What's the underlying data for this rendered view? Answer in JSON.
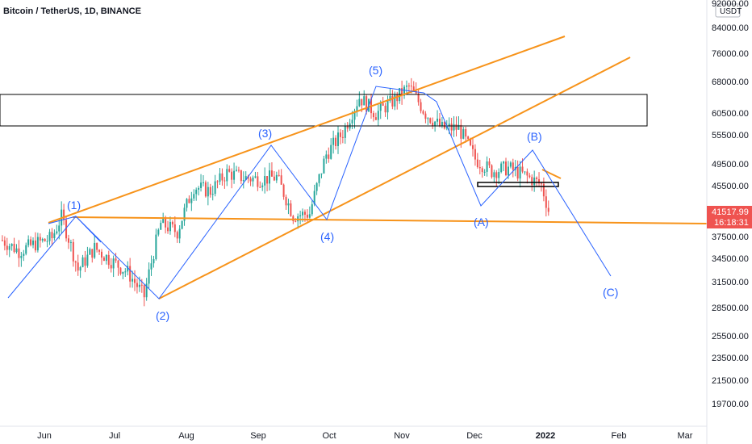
{
  "header": {
    "title": "Bitcoin / TetherUS, 1D, BINANCE"
  },
  "price_axis": {
    "currency": "USDT",
    "ticks": [
      "92000.00",
      "84000.00",
      "76000.00",
      "68000.00",
      "60500.00",
      "55500.00",
      "49500.00",
      "45500.00",
      "37500.00",
      "34500.00",
      "31500.00",
      "28500.00",
      "25500.00",
      "23500.00",
      "21500.00",
      "19700.00"
    ],
    "last_price": "41517.99",
    "countdown": "16:18:31"
  },
  "time_axis": {
    "ticks": [
      "Jun",
      "Jul",
      "Aug",
      "Sep",
      "Oct",
      "Nov",
      "Dec",
      "2022",
      "Feb",
      "Mar"
    ]
  },
  "wave_labels": [
    "(1)",
    "(2)",
    "(3)",
    "(4)",
    "(5)",
    "(A)",
    "(B)",
    "(C)"
  ],
  "colors": {
    "up": "#26a69a",
    "down": "#ef5350",
    "trend": "#f7931a",
    "wave": "#2962ff",
    "last_price": "#ef5350"
  },
  "chart_data": {
    "type": "candlestick",
    "title": "Bitcoin / TetherUS, 1D, BINANCE",
    "x_range": [
      "2021-05-20",
      "2022-03-10"
    ],
    "y_range": [
      18500,
      92000
    ],
    "elliott_waves": [
      {
        "label": "(1)",
        "date": "2021-06-15",
        "price": 41300
      },
      {
        "label": "(2)",
        "date": "2021-07-20",
        "price": 29300
      },
      {
        "label": "(3)",
        "date": "2021-09-07",
        "price": 52900
      },
      {
        "label": "(4)",
        "date": "2021-09-29",
        "price": 40800
      },
      {
        "label": "(5)",
        "date": "2021-10-20",
        "price": 67000
      },
      {
        "label": "(A)",
        "date": "2021-12-04",
        "price": 42000
      },
      {
        "label": "(B)",
        "date": "2021-12-28",
        "price": 52100
      },
      {
        "label": "(C)",
        "date": "2022-02-05",
        "price": 32000
      }
    ],
    "last_price": 41517.99,
    "resistance_zone": [
      57500,
      65000
    ],
    "candles_approx": [
      {
        "date": "2021-05-21",
        "close": 37000
      },
      {
        "date": "2021-05-28",
        "close": 35500
      },
      {
        "date": "2021-06-04",
        "close": 36500
      },
      {
        "date": "2021-06-11",
        "close": 37300
      },
      {
        "date": "2021-06-15",
        "close": 40500
      },
      {
        "date": "2021-06-22",
        "close": 33000
      },
      {
        "date": "2021-06-29",
        "close": 35900
      },
      {
        "date": "2021-07-06",
        "close": 34200
      },
      {
        "date": "2021-07-13",
        "close": 32700
      },
      {
        "date": "2021-07-20",
        "close": 29800
      },
      {
        "date": "2021-07-27",
        "close": 39500
      },
      {
        "date": "2021-08-03",
        "close": 38200
      },
      {
        "date": "2021-08-10",
        "close": 45500
      },
      {
        "date": "2021-08-17",
        "close": 44700
      },
      {
        "date": "2021-08-24",
        "close": 48000
      },
      {
        "date": "2021-08-31",
        "close": 47100
      },
      {
        "date": "2021-09-07",
        "close": 46800
      },
      {
        "date": "2021-09-14",
        "close": 47200
      },
      {
        "date": "2021-09-21",
        "close": 40700
      },
      {
        "date": "2021-09-28",
        "close": 41000
      },
      {
        "date": "2021-10-05",
        "close": 51500
      },
      {
        "date": "2021-10-12",
        "close": 56000
      },
      {
        "date": "2021-10-19",
        "close": 64200
      },
      {
        "date": "2021-10-26",
        "close": 60300
      },
      {
        "date": "2021-11-02",
        "close": 63200
      },
      {
        "date": "2021-11-09",
        "close": 66900
      },
      {
        "date": "2021-11-16",
        "close": 60300
      },
      {
        "date": "2021-11-23",
        "close": 57000
      },
      {
        "date": "2021-11-30",
        "close": 57000
      },
      {
        "date": "2021-12-07",
        "close": 50600
      },
      {
        "date": "2021-12-14",
        "close": 48300
      },
      {
        "date": "2021-12-21",
        "close": 48900
      },
      {
        "date": "2021-12-28",
        "close": 47500
      },
      {
        "date": "2022-01-04",
        "close": 45800
      },
      {
        "date": "2022-01-07",
        "close": 41517
      }
    ]
  }
}
